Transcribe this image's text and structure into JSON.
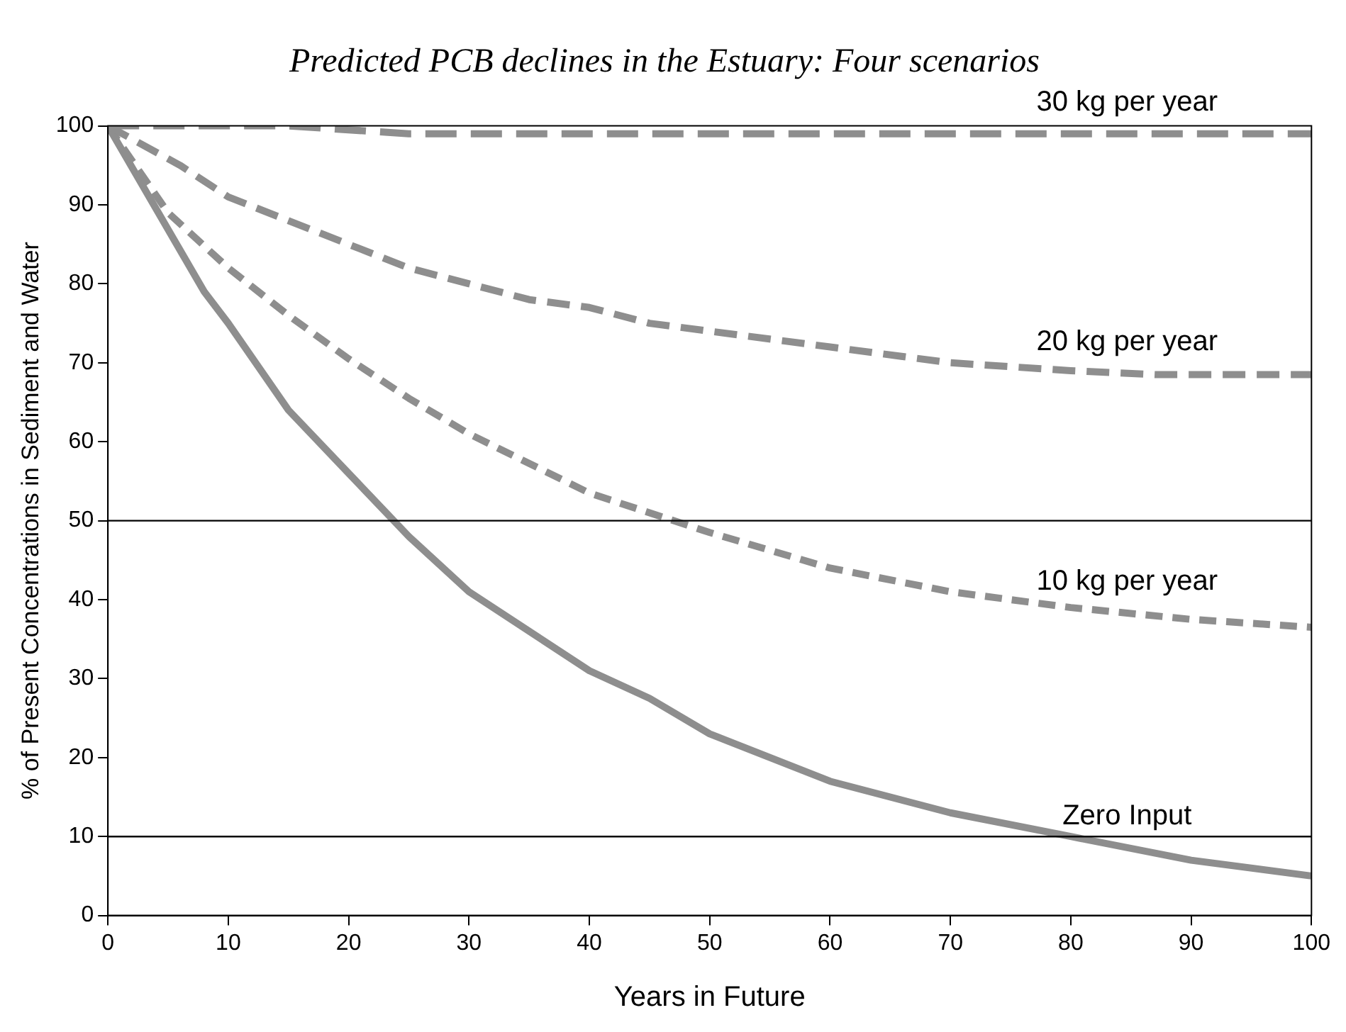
{
  "chart_data": {
    "type": "line",
    "title": "Predicted PCB declines in the Estuary: Four scenarios",
    "xlabel": "Years in Future",
    "ylabel": "% of Present Concentrations in Sediment and Water",
    "xlim": [
      0,
      100
    ],
    "xticks": [
      0,
      10,
      20,
      30,
      40,
      50,
      60,
      70,
      80,
      90,
      100
    ],
    "ylim": [
      0,
      100
    ],
    "yticks": [
      0,
      10,
      20,
      30,
      40,
      50,
      60,
      70,
      80,
      90,
      100
    ],
    "grid": false,
    "legend": false,
    "marker": "none",
    "ref_lines": [
      {
        "axis": "y",
        "value": 50,
        "color": "#000000"
      },
      {
        "axis": "y",
        "value": 10,
        "color": "#000000"
      }
    ],
    "series": [
      {
        "name": "30 kg per year",
        "color": "#8e8e8e",
        "line_style": "dashed",
        "x": [
          0,
          15,
          25,
          100
        ],
        "values": [
          100,
          100,
          99,
          99
        ]
      },
      {
        "name": "20 kg per year",
        "color": "#8e8e8e",
        "line_style": "dashed",
        "x": [
          0,
          6,
          10,
          15,
          20,
          25,
          30,
          35,
          40,
          45,
          50,
          60,
          70,
          80,
          87,
          100
        ],
        "values": [
          100,
          95,
          91,
          88,
          85,
          82,
          80,
          78,
          77,
          75,
          74,
          72,
          70,
          69,
          68.5,
          68.5
        ]
      },
      {
        "name": "10 kg per year",
        "color": "#8e8e8e",
        "line_style": "dashed",
        "x": [
          0,
          5,
          10,
          15,
          20,
          25,
          30,
          40,
          50,
          60,
          70,
          80,
          90,
          100
        ],
        "values": [
          100,
          89,
          82,
          76,
          70.5,
          65.5,
          61,
          53.5,
          48.5,
          44,
          41,
          39,
          37.5,
          36.5
        ]
      },
      {
        "name": "Zero Input",
        "color": "#8e8e8e",
        "line_style": "solid",
        "x": [
          0,
          8,
          10,
          15,
          20,
          25,
          30,
          40,
          45,
          50,
          60,
          70,
          80,
          90,
          100
        ],
        "values": [
          100,
          79,
          75,
          64,
          56,
          48,
          41,
          31,
          27.5,
          23,
          17,
          13,
          10,
          7,
          5
        ]
      }
    ]
  }
}
